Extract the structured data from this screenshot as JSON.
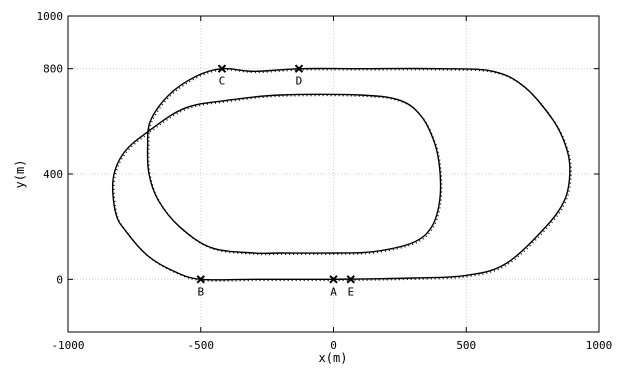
{
  "chart_data": {
    "type": "line",
    "title": "",
    "xlabel": "x(m)",
    "ylabel": "y(m)",
    "xlim": [
      -1000,
      1000
    ],
    "ylim": [
      -200,
      1000
    ],
    "xticks": [
      -1000,
      -500,
      0,
      500,
      1000
    ],
    "yticks": [
      0,
      400,
      800,
      1000
    ],
    "xtick_labels": [
      "-1000",
      "-500",
      "0",
      "500",
      "1000"
    ],
    "ytick_labels": [
      "0",
      "400",
      "800",
      "1000"
    ],
    "grid": true,
    "series": [
      {
        "style": "solid",
        "x": [
          0,
          300,
          500,
          650,
          800,
          870,
          890,
          880,
          830,
          720,
          600,
          400,
          100,
          -120,
          -300,
          -420,
          -520,
          -620,
          -690,
          -700,
          -695,
          -660,
          -580,
          -460,
          -300,
          -200,
          0,
          150,
          300,
          370,
          400,
          400,
          380,
          330,
          250,
          100,
          -200,
          -400,
          -560,
          -700,
          -790,
          -830,
          -820,
          -780,
          -700,
          -600,
          -500,
          -300,
          -100,
          0
        ],
        "y": [
          0,
          5,
          15,
          60,
          200,
          300,
          400,
          490,
          600,
          730,
          790,
          800,
          800,
          800,
          790,
          800,
          770,
          700,
          600,
          500,
          400,
          300,
          200,
          120,
          100,
          100,
          100,
          105,
          140,
          200,
          300,
          420,
          520,
          620,
          680,
          700,
          700,
          680,
          650,
          560,
          480,
          380,
          250,
          180,
          90,
          30,
          0,
          0,
          0,
          0
        ]
      },
      {
        "style": "dotted",
        "x": [
          0,
          300,
          500,
          650,
          800,
          870,
          890,
          880,
          830,
          720,
          600,
          400,
          100,
          -120,
          -300,
          -420,
          -520,
          -620,
          -690,
          -700,
          -695,
          -660,
          -580,
          -460,
          -300,
          -200,
          0,
          150,
          300,
          370,
          400,
          400,
          380,
          330,
          250,
          100,
          -200,
          -400,
          -560,
          -700,
          -790,
          -830,
          -820,
          -780,
          -700,
          -600,
          -500,
          -300,
          -100,
          0
        ],
        "y": [
          0,
          5,
          15,
          60,
          200,
          300,
          400,
          490,
          600,
          730,
          790,
          800,
          800,
          800,
          790,
          800,
          770,
          700,
          600,
          500,
          400,
          300,
          200,
          120,
          100,
          100,
          100,
          105,
          140,
          200,
          300,
          420,
          520,
          620,
          680,
          700,
          700,
          680,
          650,
          560,
          480,
          380,
          250,
          180,
          90,
          30,
          0,
          0,
          0,
          0
        ]
      }
    ],
    "markers": [
      {
        "label": "A",
        "x": 0,
        "y": 0
      },
      {
        "label": "B",
        "x": -500,
        "y": 0
      },
      {
        "label": "C",
        "x": -420,
        "y": 800
      },
      {
        "label": "D",
        "x": -130,
        "y": 800
      },
      {
        "label": "E",
        "x": 65,
        "y": 0
      }
    ]
  }
}
